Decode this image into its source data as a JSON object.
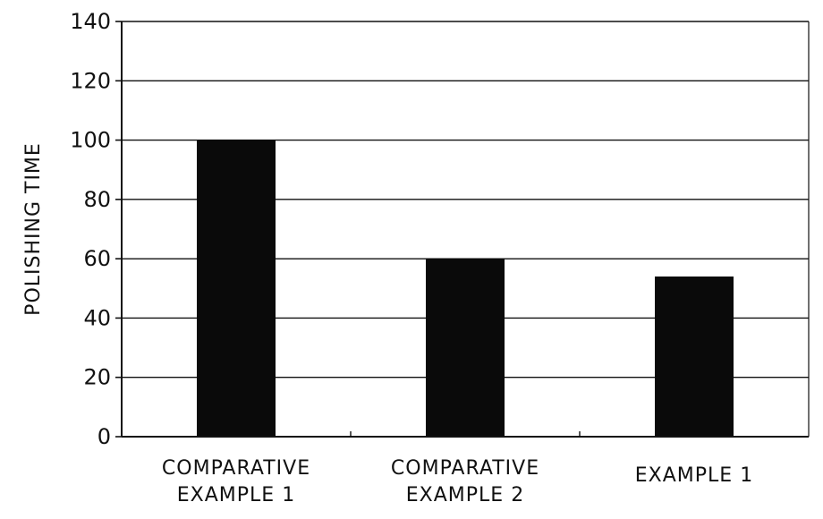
{
  "chart_data": {
    "type": "bar",
    "title": "",
    "xlabel": "",
    "ylabel": "POLISHING TIME",
    "categories": [
      [
        "COMPARATIVE",
        "EXAMPLE 1"
      ],
      [
        "COMPARATIVE",
        "EXAMPLE 2"
      ],
      [
        "EXAMPLE 1"
      ]
    ],
    "values": [
      100,
      60,
      54
    ],
    "ylim": [
      0,
      140
    ],
    "yticks": [
      0,
      20,
      40,
      60,
      80,
      100,
      120,
      140
    ],
    "grid": true,
    "legend": "none",
    "colors": {
      "bar": "#0a0a0a",
      "axis": "#111111",
      "grid": "#111111",
      "background": "#ffffff"
    }
  }
}
